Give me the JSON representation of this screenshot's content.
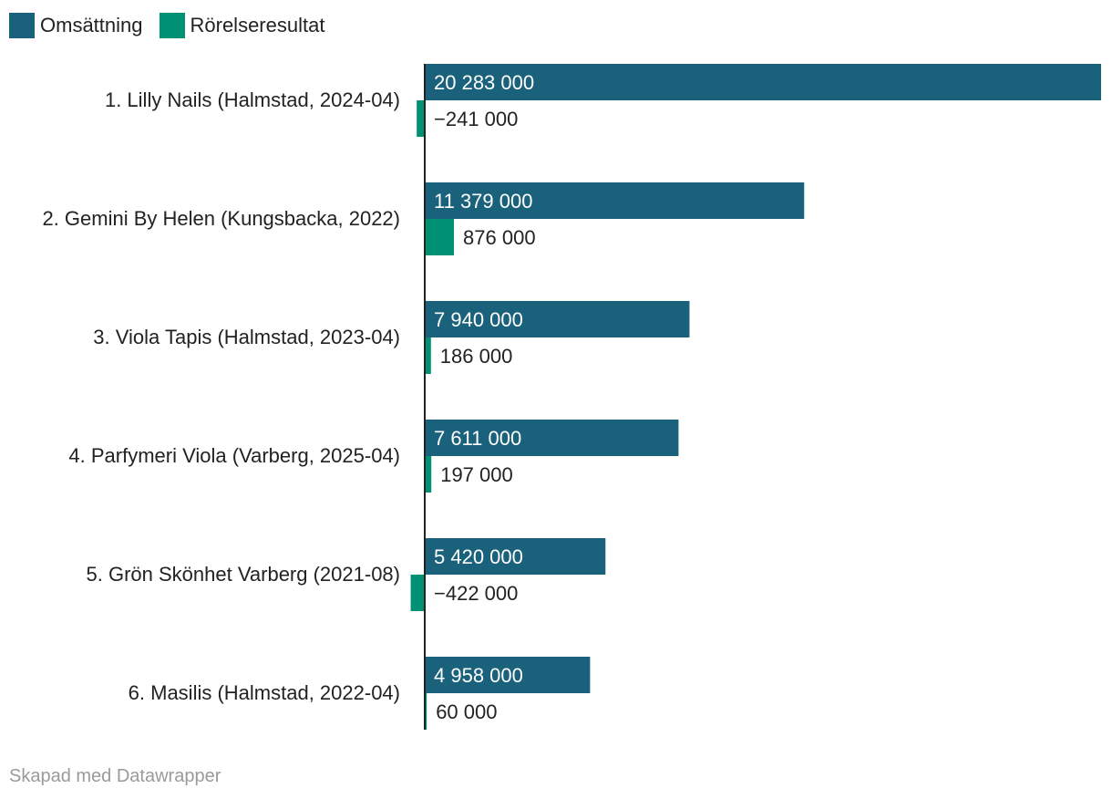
{
  "legend": [
    {
      "label": "Omsättning",
      "color": "#1a617b"
    },
    {
      "label": "Rörelseresultat",
      "color": "#009175"
    }
  ],
  "chart_data": {
    "type": "bar",
    "orientation": "horizontal",
    "categories": [
      "1. Lilly Nails (Halmstad, 2024-04)",
      "2. Gemini By Helen (Kungsbacka, 2022)",
      "3. Viola Tapis (Halmstad, 2023-04)",
      "4. Parfymeri Viola (Varberg, 2025-04)",
      "5. Grön Skönhet Varberg (2021-08)",
      "6. Masilis (Halmstad, 2022-04)"
    ],
    "series": [
      {
        "name": "Omsättning",
        "color": "#1a617b",
        "values": [
          20283000,
          11379000,
          7940000,
          7611000,
          5420000,
          4958000
        ],
        "labels": [
          "20 283 000",
          "11 379 000",
          "7 940 000",
          "7 611 000",
          "5 420 000",
          "4 958 000"
        ]
      },
      {
        "name": "Rörelseresultat",
        "color": "#009175",
        "values": [
          -241000,
          876000,
          186000,
          197000,
          -422000,
          60000
        ],
        "labels": [
          "−241 000",
          "876 000",
          "186 000",
          "197 000",
          "−422 000",
          "60 000"
        ]
      }
    ],
    "xlim": [
      -422000,
      20283000
    ],
    "grid": false,
    "legend_position": "top-left"
  },
  "footer": {
    "credit": "Skapad med Datawrapper"
  }
}
